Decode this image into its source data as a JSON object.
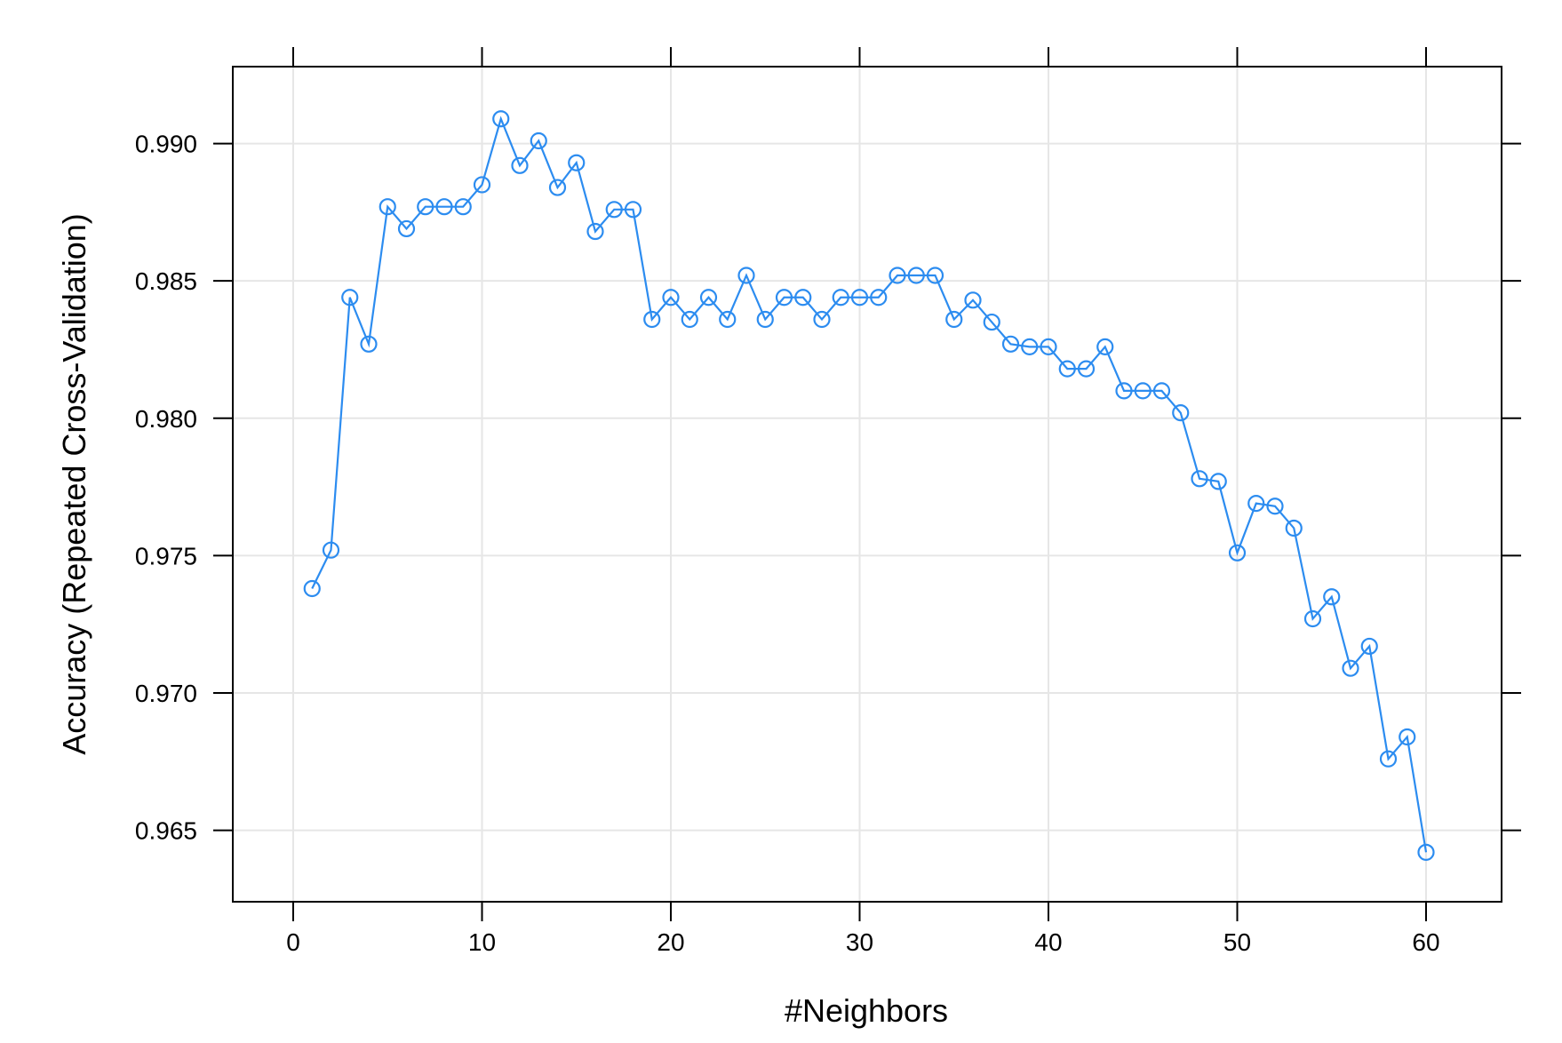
{
  "chart_data": {
    "type": "line",
    "xlabel": "#Neighbors",
    "ylabel": "Accuracy (Repeated Cross-Validation)",
    "xlim": [
      -3.2,
      64
    ],
    "ylim": [
      0.9624,
      0.9928
    ],
    "xticks": [
      0,
      10,
      20,
      30,
      40,
      50,
      60
    ],
    "xtick_labels": [
      "0",
      "10",
      "20",
      "30",
      "40",
      "50",
      "60"
    ],
    "yticks": [
      0.965,
      0.97,
      0.975,
      0.98,
      0.985,
      0.99
    ],
    "ytick_labels": [
      "0.965",
      "0.970",
      "0.975",
      "0.980",
      "0.985",
      "0.990"
    ],
    "grid": true,
    "line_color": "#2c8cf0",
    "series": [
      {
        "x": [
          1,
          2,
          3,
          4,
          5,
          6,
          7,
          8,
          9,
          10,
          11,
          12,
          13,
          14,
          15,
          16,
          17,
          18,
          19,
          20,
          21,
          22,
          23,
          24,
          25,
          26,
          27,
          28,
          29,
          30,
          31,
          32,
          33,
          34,
          35,
          36,
          37,
          38,
          39,
          40,
          41,
          42,
          43,
          44,
          45,
          46,
          47,
          48,
          49,
          50,
          51,
          52,
          53,
          54,
          55,
          56,
          57,
          58,
          59,
          60
        ],
        "values": [
          0.9738,
          0.9752,
          0.9844,
          0.9827,
          0.9877,
          0.9869,
          0.9877,
          0.9877,
          0.9877,
          0.9885,
          0.9909,
          0.9892,
          0.9901,
          0.9884,
          0.9893,
          0.9868,
          0.9876,
          0.9876,
          0.9836,
          0.9844,
          0.9836,
          0.9844,
          0.9836,
          0.9852,
          0.9836,
          0.9844,
          0.9844,
          0.9836,
          0.9844,
          0.9844,
          0.9844,
          0.9852,
          0.9852,
          0.9852,
          0.9836,
          0.9843,
          0.9835,
          0.9827,
          0.9826,
          0.9826,
          0.9818,
          0.9818,
          0.9826,
          0.981,
          0.981,
          0.981,
          0.9802,
          0.9778,
          0.9777,
          0.9751,
          0.9769,
          0.9768,
          0.976,
          0.9727,
          0.9735,
          0.9709,
          0.9717,
          0.9676,
          0.9684,
          0.9642
        ]
      }
    ]
  }
}
